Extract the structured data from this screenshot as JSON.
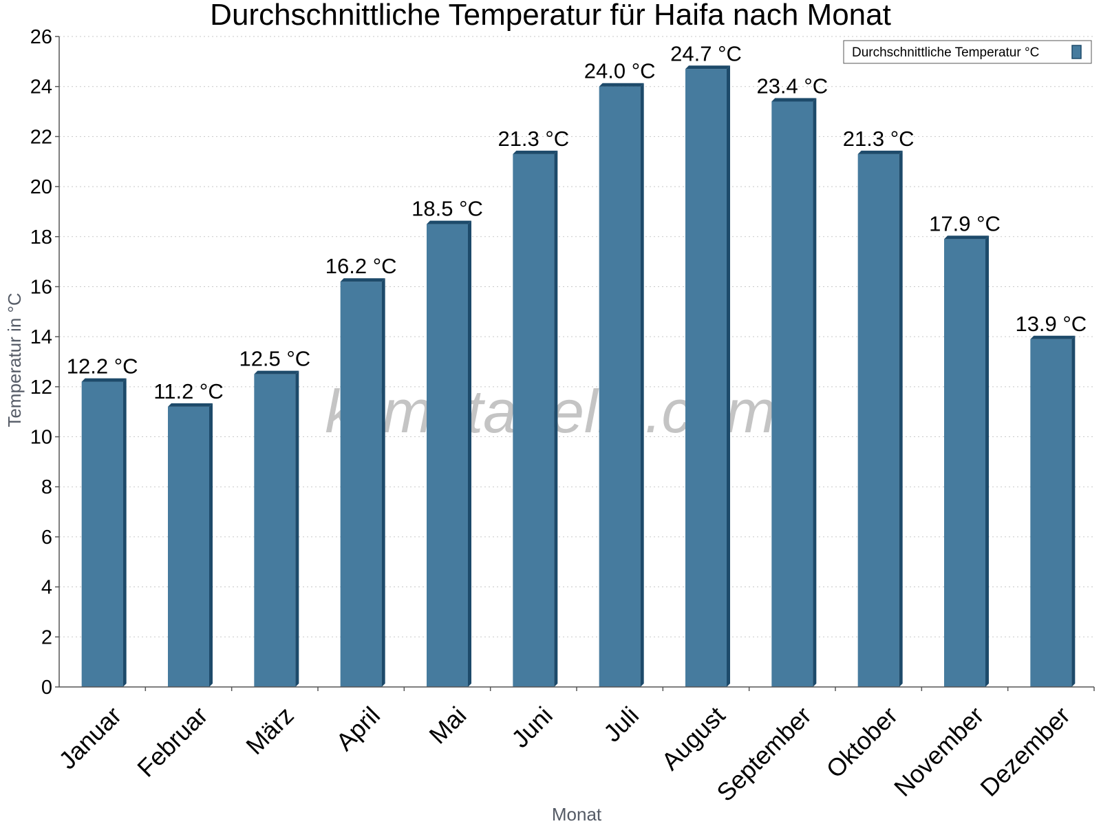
{
  "colors": {
    "bar": "#467b9e",
    "bar_side": "#1d4a6a",
    "bar_top": "#1d4a6a"
  },
  "watermark": "klimatabelle.com",
  "chart_data": {
    "type": "bar",
    "title": "Durchschnittliche Temperatur für Haifa nach Monat",
    "xlabel": "Monat",
    "ylabel": "Temperatur in °C",
    "categories": [
      "Januar",
      "Februar",
      "März",
      "April",
      "Mai",
      "Juni",
      "Juli",
      "August",
      "September",
      "Oktober",
      "November",
      "Dezember"
    ],
    "series": [
      {
        "name": "Durchschnittliche Temperatur °C",
        "values": [
          12.2,
          11.2,
          12.5,
          16.2,
          18.5,
          21.3,
          24.0,
          24.7,
          23.4,
          21.3,
          17.9,
          13.9
        ],
        "labels": [
          "12.2 °C",
          "11.2 °C",
          "12.5 °C",
          "16.2 °C",
          "18.5 °C",
          "21.3 °C",
          "24.0 °C",
          "24.7 °C",
          "23.4 °C",
          "21.3 °C",
          "17.9 °C",
          "13.9 °C"
        ]
      }
    ],
    "ylim": [
      0,
      26
    ],
    "yticks": [
      0,
      2,
      4,
      6,
      8,
      10,
      12,
      14,
      16,
      18,
      20,
      22,
      24,
      26
    ],
    "grid": true,
    "legend_position": "top-right"
  }
}
